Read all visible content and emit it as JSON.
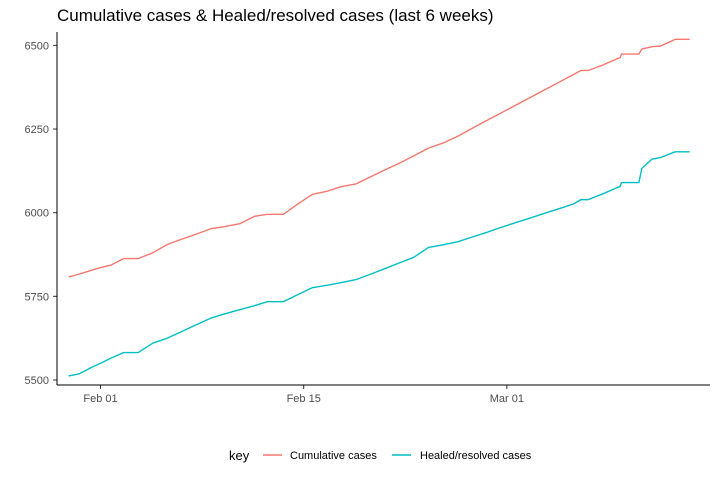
{
  "chart_data": {
    "type": "line",
    "title": "Cumulative cases & Healed/resolved cases (last 6 weeks)",
    "xlabel": "",
    "ylabel": "",
    "x_range_days": [
      -3,
      42
    ],
    "ylim": [
      5485,
      6540
    ],
    "x_ticks": [
      {
        "day": 0,
        "label": "Feb 01"
      },
      {
        "day": 14,
        "label": "Feb 15"
      },
      {
        "day": 28,
        "label": "Mar 01"
      }
    ],
    "y_ticks": [
      {
        "value": 5500,
        "label": "5500"
      },
      {
        "value": 5750,
        "label": "5750"
      },
      {
        "value": 6000,
        "label": "6000"
      },
      {
        "value": 6250,
        "label": "6250"
      },
      {
        "value": 6500,
        "label": "6500"
      }
    ],
    "legend": {
      "title": "key",
      "position": "bottom"
    },
    "series": [
      {
        "name": "Cumulative cases",
        "color": "#F8766D",
        "points": [
          [
            -2.2,
            5808
          ],
          [
            -1.5,
            5816
          ],
          [
            -0.6,
            5828
          ],
          [
            0.0,
            5836
          ],
          [
            0.7,
            5843
          ],
          [
            1.6,
            5863
          ],
          [
            2.6,
            5863
          ],
          [
            3.6,
            5880
          ],
          [
            4.6,
            5905
          ],
          [
            5.6,
            5921
          ],
          [
            6.6,
            5936
          ],
          [
            7.6,
            5952
          ],
          [
            8.6,
            5959
          ],
          [
            9.6,
            5967
          ],
          [
            10.6,
            5989
          ],
          [
            11.5,
            5995
          ],
          [
            12.6,
            5995
          ],
          [
            13.6,
            6026
          ],
          [
            14.6,
            6055
          ],
          [
            15.6,
            6064
          ],
          [
            16.6,
            6078
          ],
          [
            17.6,
            6086
          ],
          [
            18.6,
            6107
          ],
          [
            19.6,
            6128
          ],
          [
            20.6,
            6148
          ],
          [
            21.6,
            6170
          ],
          [
            22.6,
            6193
          ],
          [
            23.6,
            6208
          ],
          [
            24.6,
            6228
          ],
          [
            25.6,
            6252
          ],
          [
            26.6,
            6275
          ],
          [
            27.6,
            6298
          ],
          [
            28.6,
            6321
          ],
          [
            29.6,
            6344
          ],
          [
            30.6,
            6367
          ],
          [
            31.6,
            6390
          ],
          [
            32.6,
            6413
          ],
          [
            33.1,
            6425
          ],
          [
            33.6,
            6425
          ],
          [
            34.6,
            6441
          ],
          [
            35.6,
            6460
          ],
          [
            35.8,
            6463
          ],
          [
            35.9,
            6474
          ],
          [
            37.1,
            6474
          ],
          [
            37.3,
            6489
          ],
          [
            38.0,
            6496
          ],
          [
            38.6,
            6498
          ],
          [
            39.6,
            6518
          ],
          [
            40.6,
            6518
          ]
        ]
      },
      {
        "name": "Healed/resolved cases",
        "color": "#00BFC4",
        "points": [
          [
            -2.2,
            5512
          ],
          [
            -1.5,
            5518
          ],
          [
            -0.6,
            5538
          ],
          [
            0.0,
            5550
          ],
          [
            0.7,
            5565
          ],
          [
            1.6,
            5582
          ],
          [
            2.6,
            5582
          ],
          [
            3.6,
            5610
          ],
          [
            4.6,
            5625
          ],
          [
            5.6,
            5645
          ],
          [
            6.6,
            5665
          ],
          [
            7.6,
            5685
          ],
          [
            8.6,
            5698
          ],
          [
            9.6,
            5710
          ],
          [
            10.6,
            5722
          ],
          [
            11.5,
            5734
          ],
          [
            12.6,
            5734
          ],
          [
            13.6,
            5755
          ],
          [
            14.6,
            5776
          ],
          [
            15.6,
            5783
          ],
          [
            16.6,
            5791
          ],
          [
            17.6,
            5800
          ],
          [
            18.6,
            5816
          ],
          [
            19.6,
            5833
          ],
          [
            20.6,
            5850
          ],
          [
            21.6,
            5867
          ],
          [
            22.6,
            5896
          ],
          [
            23.6,
            5904
          ],
          [
            24.6,
            5913
          ],
          [
            25.6,
            5927
          ],
          [
            26.6,
            5941
          ],
          [
            27.6,
            5956
          ],
          [
            28.6,
            5970
          ],
          [
            29.6,
            5984
          ],
          [
            30.6,
            5998
          ],
          [
            31.6,
            6012
          ],
          [
            32.6,
            6026
          ],
          [
            33.1,
            6039
          ],
          [
            33.6,
            6039
          ],
          [
            34.6,
            6056
          ],
          [
            35.6,
            6075
          ],
          [
            35.8,
            6078
          ],
          [
            35.9,
            6090
          ],
          [
            37.1,
            6090
          ],
          [
            37.3,
            6132
          ],
          [
            38.0,
            6160
          ],
          [
            38.6,
            6165
          ],
          [
            39.6,
            6182
          ],
          [
            40.6,
            6182
          ]
        ]
      }
    ]
  }
}
